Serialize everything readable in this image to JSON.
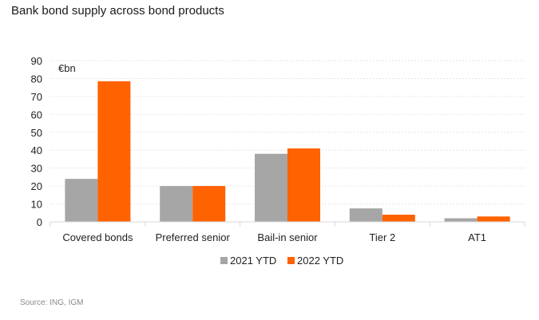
{
  "chart_data": {
    "type": "bar",
    "title": "Bank bond supply across bond products",
    "unit_label": "€bn",
    "categories": [
      "Covered bonds",
      "Preferred senior",
      "Bail-in senior",
      "Tier 2",
      "AT1"
    ],
    "series": [
      {
        "name": "2021 YTD",
        "values": [
          24,
          20,
          38,
          7.5,
          2
        ],
        "color": "#a6a6a6"
      },
      {
        "name": "2022 YTD",
        "values": [
          78.5,
          20,
          41,
          4,
          3
        ],
        "color": "#ff6200"
      }
    ],
    "ylim": [
      0,
      90
    ],
    "yticks": [
      "0",
      "10",
      "20",
      "30",
      "40",
      "50",
      "60",
      "70",
      "80",
      "90"
    ],
    "grid": true,
    "legend": "bottom-center",
    "source": "Source: ING, IGM"
  }
}
